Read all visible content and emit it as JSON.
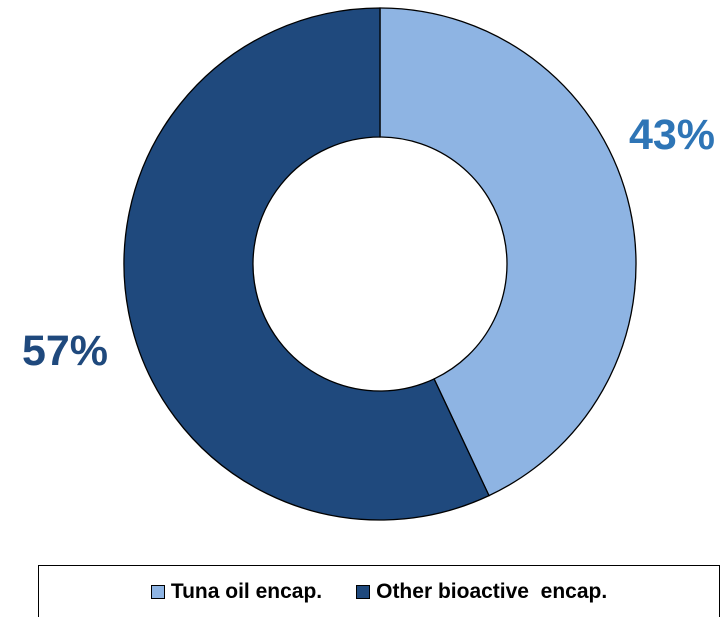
{
  "chart_data": {
    "type": "pie",
    "variant": "donut",
    "slices": [
      {
        "name": "Tuna oil encap.",
        "value": 43,
        "label": "43%",
        "color": "#8EB4E3",
        "label_color": "#2E75B6"
      },
      {
        "name": "Other bioactive  encap.",
        "value": 57,
        "label": "57%",
        "color": "#1F497D",
        "label_color": "#1F497D"
      }
    ],
    "legend_position": "bottom"
  }
}
